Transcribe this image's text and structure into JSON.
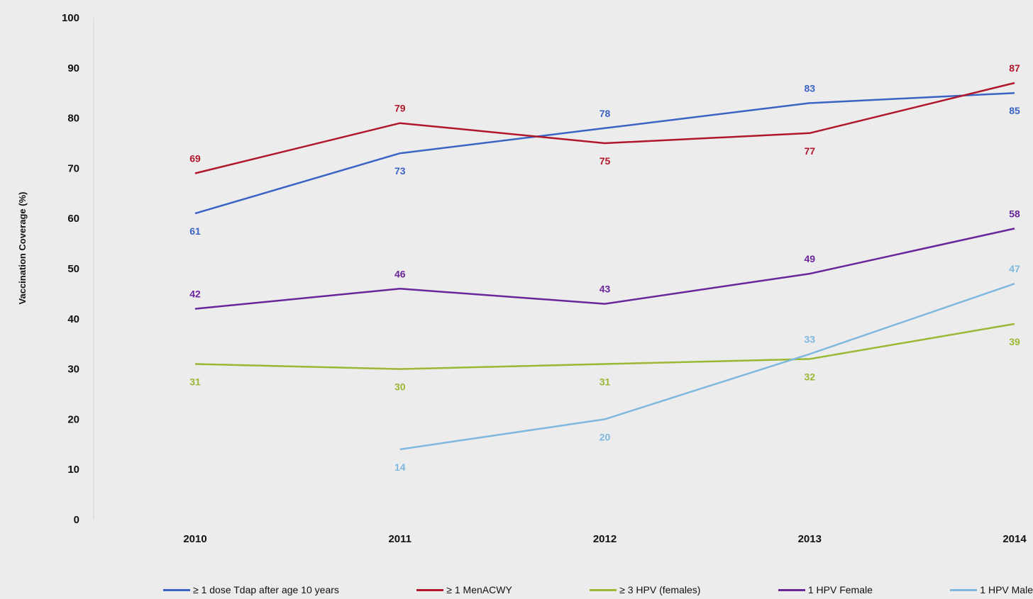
{
  "chart_data": {
    "type": "line",
    "title": "",
    "xlabel": "",
    "ylabel": "Vaccination Coverage (%)",
    "x": [
      "2010",
      "2011",
      "2012",
      "2013",
      "2014"
    ],
    "y_ticks": [
      "0",
      "10",
      "20",
      "30",
      "40",
      "50",
      "60",
      "70",
      "80",
      "90",
      "100"
    ],
    "ylim": [
      0,
      100
    ],
    "grid": false,
    "legend_position": "bottom",
    "series": [
      {
        "name": "≥ 1 dose Tdap after age 10 years",
        "color": "#3b63c4",
        "values": [
          61,
          73,
          78,
          83,
          85
        ],
        "labels": [
          "61",
          "73",
          "78",
          "83",
          "85"
        ]
      },
      {
        "name": "≥ 1 MenACWY",
        "color": "#b0172b",
        "values": [
          69,
          79,
          75,
          77,
          87
        ],
        "labels": [
          "69",
          "79",
          "75",
          "77",
          "87"
        ]
      },
      {
        "name": "≥ 3 HPV (females)",
        "color": "#9ab833",
        "values": [
          31,
          30,
          31,
          32,
          39
        ],
        "labels": [
          "31",
          "30",
          "31",
          "32",
          "39"
        ]
      },
      {
        "name": "1 HPV Female",
        "color": "#6a259b",
        "values": [
          42,
          46,
          43,
          49,
          58
        ],
        "labels": [
          "42",
          "46",
          "43",
          "49",
          "58"
        ]
      },
      {
        "name": "1 HPV Male",
        "color": "#7fb8de",
        "values": [
          null,
          14,
          20,
          33,
          47
        ],
        "labels": [
          "",
          "14",
          "20",
          "33",
          "47"
        ]
      }
    ]
  }
}
